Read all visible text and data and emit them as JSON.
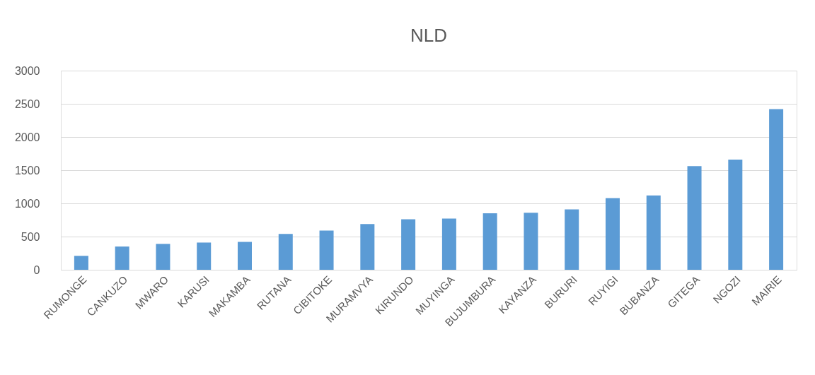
{
  "chart_data": {
    "type": "bar",
    "title": "NLD",
    "categories": [
      "RUMONGE",
      "CANKUZO",
      "MWARO",
      "KARUSI",
      "MAKAMBA",
      "RUTANA",
      "CIBITOKE",
      "MURAMVYA",
      "KIRUNDO",
      "MUYINGA",
      "BUJUMBURA",
      "KAYANZA",
      "BURURI",
      "RUYIGI",
      "BUBANZA",
      "GITEGA",
      "NGOZI",
      "MAIRIE"
    ],
    "values": [
      210,
      350,
      390,
      410,
      420,
      540,
      590,
      690,
      760,
      770,
      850,
      860,
      910,
      1080,
      1120,
      1560,
      1660,
      2420
    ],
    "color": "#5b9bd5",
    "ylim": [
      0,
      3000
    ],
    "yticks": [
      0,
      500,
      1000,
      1500,
      2000,
      2500,
      3000
    ],
    "grid": "y"
  }
}
